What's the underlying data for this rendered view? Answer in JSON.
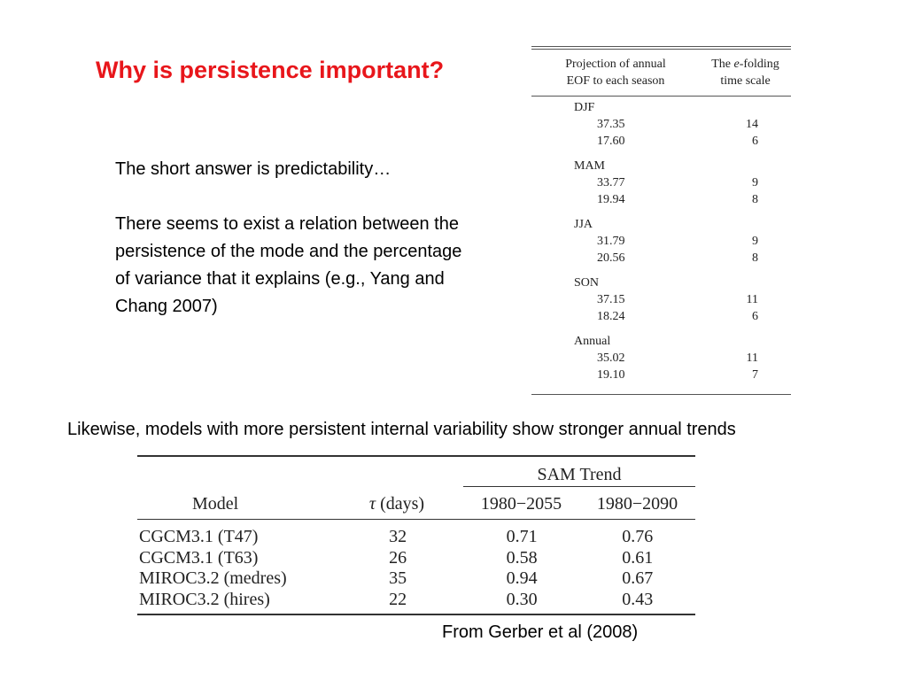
{
  "slide": {
    "title": "Why is persistence important?",
    "paragraph1": "The short answer is predictability…",
    "paragraph2": "There seems to exist a relation between the persistence of the mode and the percentage of variance that it explains (e.g., Yang and Chang 2007)",
    "likewise": "Likewise, models with more persistent internal variability show stronger annual trends",
    "source": "From Gerber et al (2008)",
    "title_color": "#e8161b"
  },
  "eof_table": {
    "header_col1_line1": "Projection of annual",
    "header_col1_line2": "EOF to each season",
    "header_col2_line1_pre": "The ",
    "header_col2_line1_italic": "e",
    "header_col2_line1_post": "-folding",
    "header_col2_line2": "time scale",
    "groups": [
      {
        "season": "DJF",
        "rows": [
          {
            "projection": "37.35",
            "timescale": "14"
          },
          {
            "projection": "17.60",
            "timescale": "6"
          }
        ]
      },
      {
        "season": "MAM",
        "rows": [
          {
            "projection": "33.77",
            "timescale": "9"
          },
          {
            "projection": "19.94",
            "timescale": "8"
          }
        ]
      },
      {
        "season": "JJA",
        "rows": [
          {
            "projection": "31.79",
            "timescale": "9"
          },
          {
            "projection": "20.56",
            "timescale": "8"
          }
        ]
      },
      {
        "season": "SON",
        "rows": [
          {
            "projection": "37.15",
            "timescale": "11"
          },
          {
            "projection": "18.24",
            "timescale": "6"
          }
        ]
      },
      {
        "season": "Annual",
        "rows": [
          {
            "projection": "35.02",
            "timescale": "11"
          },
          {
            "projection": "19.10",
            "timescale": "7"
          }
        ]
      }
    ]
  },
  "sam_table": {
    "group_header": "SAM Trend",
    "col_model": "Model",
    "col_tau_symbol": "τ",
    "col_tau_unit": " (days)",
    "col_period1": "1980−2055",
    "col_period2": "1980−2090",
    "rows": [
      {
        "model": "CGCM3.1 (T47)",
        "tau": "32",
        "p1": "0.71",
        "p2": "0.76"
      },
      {
        "model": "CGCM3.1 (T63)",
        "tau": "26",
        "p1": "0.58",
        "p2": "0.61"
      },
      {
        "model": "MIROC3.2 (medres)",
        "tau": "35",
        "p1": "0.94",
        "p2": "0.67"
      },
      {
        "model": "MIROC3.2 (hires)",
        "tau": "22",
        "p1": "0.30",
        "p2": "0.43"
      }
    ]
  }
}
